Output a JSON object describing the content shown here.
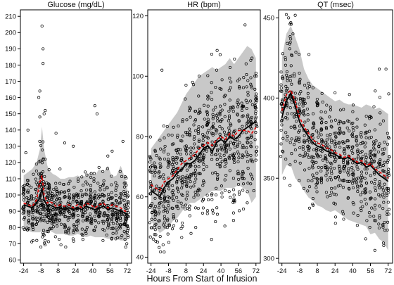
{
  "figure": {
    "xlabel": "Hours From Start of Infusion"
  },
  "chart_data": [
    {
      "type": "scatter",
      "title": "Glucose (mg/dL)",
      "x_ticks": [
        "-24",
        "-8",
        "8",
        "24",
        "40",
        "56",
        "72"
      ],
      "y_ticks": [
        "60",
        "70",
        "80",
        "90",
        "100",
        "110",
        "120",
        "130",
        "140",
        "150",
        "160",
        "170",
        "180",
        "190",
        "200",
        "210"
      ],
      "xlim": [
        -27,
        76
      ],
      "ylim": [
        58,
        214
      ],
      "band": {
        "x": [
          -24,
          -20,
          -16,
          -12,
          -9,
          -7,
          -5,
          -2,
          0,
          3,
          6,
          10,
          14,
          18,
          22,
          26,
          30,
          34,
          38,
          42,
          46,
          50,
          54,
          58,
          62,
          66,
          70,
          72
        ],
        "lower": [
          78,
          78,
          77,
          77,
          77,
          78,
          76,
          78,
          78,
          77,
          76,
          76,
          76,
          75,
          75,
          76,
          75,
          74,
          75,
          74,
          74,
          74,
          73,
          73,
          73,
          72,
          72,
          72
        ],
        "upper": [
          112,
          114,
          116,
          120,
          128,
          142,
          128,
          118,
          115,
          113,
          112,
          110,
          110,
          111,
          111,
          112,
          111,
          112,
          114,
          112,
          116,
          114,
          118,
          111,
          112,
          118,
          110,
          104
        ]
      },
      "series": [
        {
          "role": "median",
          "x": [
            -24,
            -20,
            -16,
            -12,
            -9,
            -7,
            -5,
            -2,
            0,
            3,
            6,
            10,
            14,
            18,
            22,
            26,
            30,
            34,
            38,
            42,
            46,
            50,
            54,
            58,
            62,
            66,
            70,
            72
          ],
          "y": [
            94,
            93,
            92,
            95,
            98,
            104,
            97,
            93,
            94,
            93,
            92,
            92,
            91,
            92,
            91,
            92,
            91,
            93,
            92,
            91,
            92,
            93,
            91,
            92,
            91,
            90,
            89,
            88
          ]
        },
        {
          "role": "mean",
          "x": [
            -24,
            -20,
            -16,
            -12,
            -9,
            -7,
            -5,
            -2,
            0,
            3,
            6,
            10,
            14,
            18,
            22,
            26,
            30,
            34,
            38,
            42,
            46,
            50,
            54,
            58,
            62,
            66,
            70,
            72
          ],
          "y": [
            95,
            94,
            93,
            97,
            108,
            112,
            100,
            95,
            96,
            95,
            93,
            94,
            93,
            94,
            92,
            94,
            92,
            95,
            94,
            92,
            94,
            95,
            92,
            94,
            93,
            92,
            90,
            90
          ]
        }
      ],
      "scatter": {
        "x_points": [
          -24,
          -20,
          -16,
          -12,
          -9,
          -7,
          -5,
          -2,
          0,
          3,
          6,
          10,
          14,
          18,
          22,
          26,
          30,
          34,
          38,
          42,
          46,
          50,
          54,
          58,
          62,
          66,
          70,
          72
        ],
        "center": [
          94,
          93,
          92,
          95,
          100,
          104,
          97,
          93,
          94,
          93,
          92,
          92,
          91,
          92,
          91,
          92,
          91,
          93,
          92,
          91,
          92,
          93,
          91,
          92,
          91,
          90,
          89,
          88
        ],
        "spread": [
          9,
          9,
          9,
          11,
          14,
          17,
          12,
          10,
          10,
          9,
          9,
          9,
          9,
          9,
          9,
          9,
          9,
          10,
          9,
          9,
          10,
          10,
          10,
          10,
          10,
          11,
          9,
          9
        ],
        "per_time": 26,
        "outliers": [
          [
            -7,
            204
          ],
          [
            -6,
            190
          ],
          [
            -6,
            181
          ],
          [
            -9,
            164
          ],
          [
            -10,
            160
          ],
          [
            -9,
            148
          ],
          [
            -5,
            150
          ],
          [
            -4,
            152
          ],
          [
            14,
            132
          ],
          [
            22,
            130
          ],
          [
            44,
            150
          ],
          [
            42,
            155
          ],
          [
            6,
            138
          ],
          [
            58,
            127
          ],
          [
            54,
            124
          ],
          [
            68,
            133
          ],
          [
            -20,
            140
          ],
          [
            -22,
            126
          ]
        ]
      }
    },
    {
      "type": "scatter",
      "title": "HR (bpm)",
      "x_ticks": [
        "-24",
        "-8",
        "8",
        "24",
        "40",
        "56",
        "72"
      ],
      "y_ticks": [
        "40",
        "60",
        "80",
        "100",
        "120"
      ],
      "xlim": [
        -27,
        76
      ],
      "ylim": [
        38,
        122
      ],
      "band": {
        "x": [
          -24,
          -20,
          -16,
          -12,
          -8,
          -4,
          0,
          4,
          8,
          12,
          16,
          20,
          24,
          28,
          32,
          36,
          40,
          44,
          48,
          52,
          56,
          60,
          64,
          68,
          72
        ],
        "lower": [
          52,
          50,
          48,
          49,
          50,
          52,
          53,
          55,
          57,
          58,
          58,
          59,
          60,
          61,
          62,
          62,
          62,
          63,
          63,
          63,
          64,
          63,
          62,
          58,
          60
        ],
        "upper": [
          76,
          78,
          80,
          82,
          84,
          86,
          88,
          91,
          94,
          96,
          98,
          100,
          101,
          102,
          103,
          102,
          103,
          104,
          106,
          104,
          106,
          108,
          110,
          109,
          106
        ]
      },
      "series": [
        {
          "role": "median",
          "x": [
            -24,
            -20,
            -16,
            -12,
            -8,
            -4,
            0,
            4,
            8,
            12,
            16,
            20,
            24,
            28,
            32,
            36,
            40,
            44,
            48,
            52,
            56,
            60,
            64,
            68,
            72
          ],
          "y": [
            62,
            61,
            60,
            63,
            65,
            66,
            68,
            69,
            71,
            71,
            72,
            74,
            76,
            77,
            75,
            78,
            79,
            78,
            80,
            79,
            80,
            82,
            83,
            84,
            85
          ]
        },
        {
          "role": "mean",
          "x": [
            -24,
            -20,
            -16,
            -12,
            -8,
            -4,
            0,
            4,
            8,
            12,
            16,
            20,
            24,
            28,
            32,
            36,
            40,
            44,
            48,
            52,
            56,
            60,
            64,
            68,
            72
          ],
          "y": [
            64,
            63,
            62,
            65,
            66,
            67,
            69,
            71,
            72,
            73,
            74,
            76,
            77,
            78,
            77,
            79,
            80,
            79,
            81,
            80,
            82,
            82,
            82,
            81,
            83
          ]
        }
      ],
      "scatter": {
        "x_points": [
          -24,
          -20,
          -16,
          -12,
          -8,
          -4,
          0,
          4,
          8,
          12,
          16,
          20,
          24,
          28,
          32,
          36,
          40,
          44,
          48,
          52,
          56,
          60,
          64,
          68,
          72
        ],
        "center": [
          62,
          61,
          60,
          63,
          65,
          66,
          68,
          69,
          71,
          71,
          72,
          74,
          76,
          77,
          75,
          78,
          79,
          78,
          80,
          79,
          80,
          82,
          83,
          84,
          85
        ],
        "spread": [
          8,
          8,
          9,
          9,
          10,
          10,
          10,
          11,
          11,
          11,
          11,
          11,
          11,
          11,
          11,
          11,
          11,
          11,
          11,
          11,
          11,
          11,
          11,
          11,
          11
        ],
        "per_time": 30,
        "outliers": [
          [
            -14,
            102
          ],
          [
            8,
            97
          ],
          [
            14,
            98
          ],
          [
            20,
            100
          ],
          [
            36,
            102
          ],
          [
            62,
            117
          ],
          [
            -22,
            46
          ],
          [
            -18,
            45
          ],
          [
            64,
            58
          ],
          [
            70,
            62
          ]
        ]
      }
    },
    {
      "type": "scatter",
      "title": "QT (msec)",
      "x_ticks": [
        "-24",
        "-8",
        "8",
        "24",
        "40",
        "56",
        "72"
      ],
      "y_ticks": [
        "300",
        "350",
        "400",
        "450"
      ],
      "xlim": [
        -27,
        76
      ],
      "ylim": [
        297,
        455
      ],
      "band": {
        "x": [
          -24,
          -20,
          -16,
          -12,
          -8,
          -4,
          0,
          4,
          8,
          12,
          16,
          20,
          24,
          28,
          32,
          36,
          40,
          44,
          48,
          52,
          56,
          60,
          64,
          68,
          72
        ],
        "lower": [
          352,
          358,
          358,
          350,
          347,
          342,
          338,
          336,
          333,
          332,
          330,
          329,
          330,
          328,
          326,
          324,
          323,
          322,
          321,
          320,
          315,
          316,
          312,
          310,
          305
        ],
        "upper": [
          425,
          440,
          445,
          438,
          430,
          418,
          412,
          408,
          406,
          404,
          402,
          400,
          398,
          399,
          397,
          396,
          396,
          395,
          394,
          396,
          395,
          393,
          394,
          392,
          390
        ]
      },
      "series": [
        {
          "role": "median",
          "x": [
            -24,
            -20,
            -16,
            -12,
            -8,
            -4,
            0,
            4,
            8,
            12,
            16,
            20,
            24,
            28,
            32,
            36,
            40,
            44,
            48,
            52,
            56,
            60,
            64,
            68,
            72
          ],
          "y": [
            388,
            398,
            403,
            395,
            385,
            380,
            376,
            372,
            370,
            369,
            367,
            366,
            365,
            363,
            362,
            363,
            361,
            359,
            360,
            357,
            358,
            355,
            352,
            350,
            348
          ]
        },
        {
          "role": "mean",
          "x": [
            -24,
            -20,
            -16,
            -12,
            -8,
            -4,
            0,
            4,
            8,
            12,
            16,
            20,
            24,
            28,
            32,
            36,
            40,
            44,
            48,
            52,
            56,
            60,
            64,
            68,
            72
          ],
          "y": [
            392,
            402,
            405,
            398,
            388,
            382,
            378,
            374,
            372,
            371,
            369,
            368,
            366,
            365,
            363,
            364,
            362,
            360,
            361,
            358,
            359,
            356,
            354,
            352,
            350
          ]
        }
      ],
      "scatter": {
        "x_points": [
          -24,
          -20,
          -16,
          -12,
          -8,
          -4,
          0,
          4,
          8,
          12,
          16,
          20,
          24,
          28,
          32,
          36,
          40,
          44,
          48,
          52,
          56,
          60,
          64,
          68,
          72
        ],
        "center": [
          388,
          398,
          403,
          395,
          385,
          380,
          376,
          372,
          370,
          369,
          367,
          366,
          365,
          363,
          362,
          363,
          361,
          359,
          360,
          357,
          358,
          355,
          352,
          350,
          348
        ],
        "spread": [
          16,
          20,
          22,
          20,
          19,
          18,
          18,
          17,
          17,
          17,
          17,
          17,
          17,
          17,
          17,
          17,
          17,
          17,
          17,
          17,
          18,
          18,
          19,
          19,
          19
        ],
        "per_time": 28,
        "outliers": [
          [
            -20,
            452
          ],
          [
            -18,
            450
          ],
          [
            -16,
            447
          ],
          [
            -14,
            440
          ],
          [
            64,
            418
          ],
          [
            70,
            418
          ],
          [
            -22,
            350
          ],
          [
            60,
            305
          ],
          [
            68,
            308
          ]
        ]
      }
    }
  ],
  "colors": {
    "band": "#c8c8c8",
    "median": "#000000",
    "mean": "#e60000",
    "points": "#000000"
  }
}
